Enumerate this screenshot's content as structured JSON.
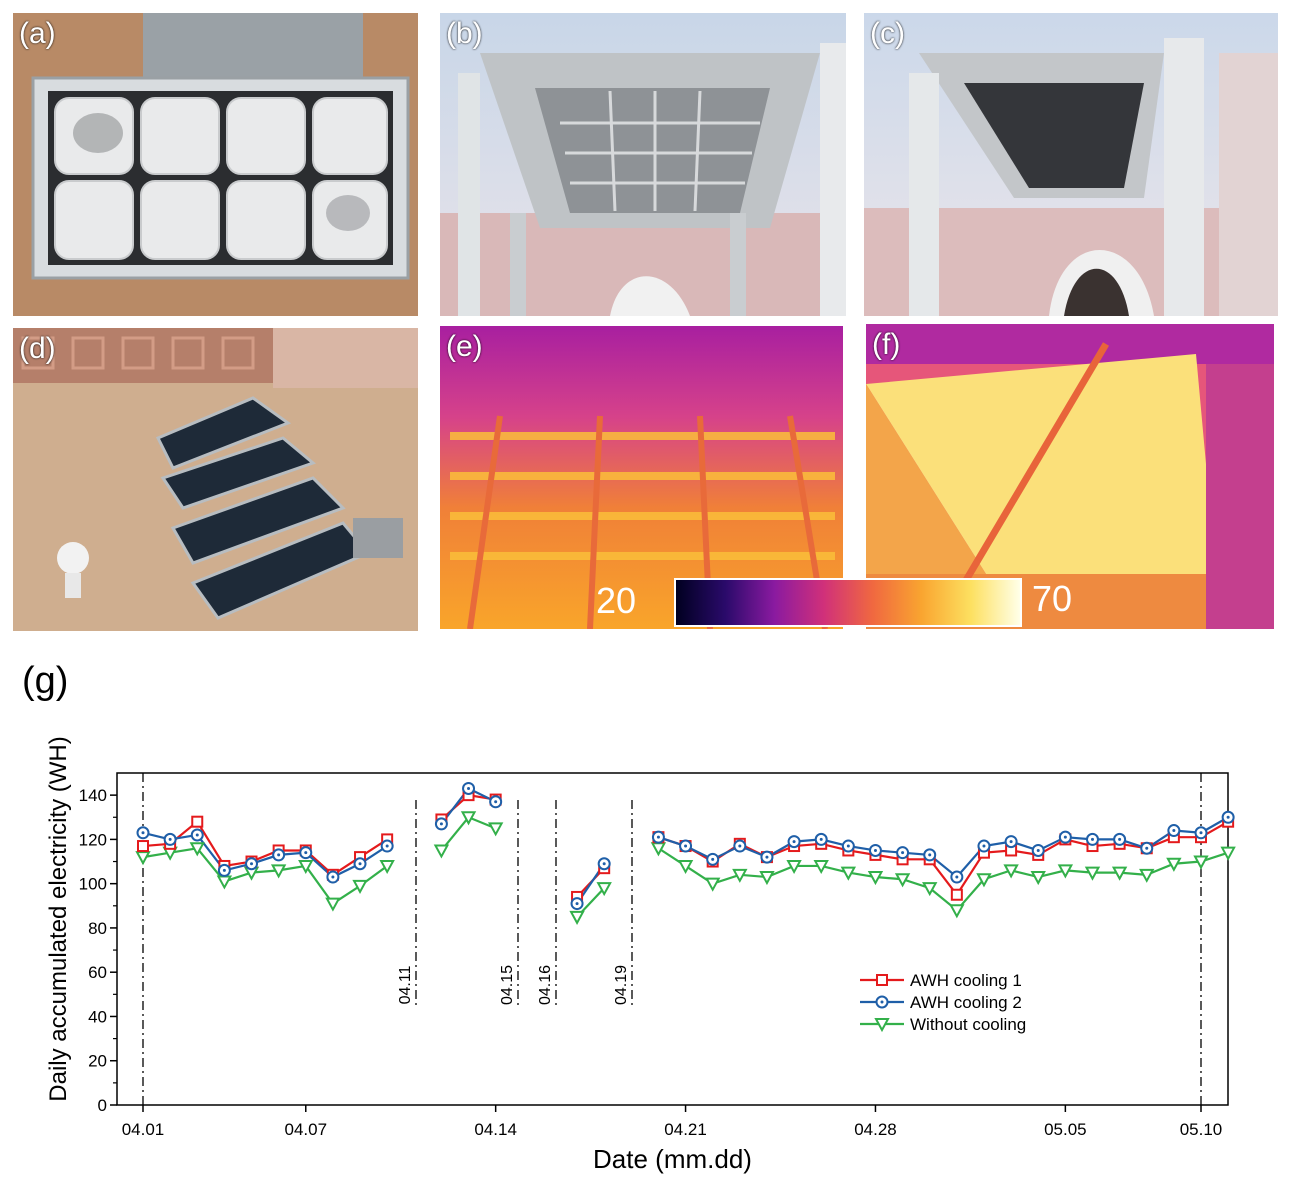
{
  "panels": {
    "a": {
      "label": "(a)"
    },
    "b": {
      "label": "(b)"
    },
    "c": {
      "label": "(c)"
    },
    "d": {
      "label": "(d)"
    },
    "e": {
      "label": "(e)"
    },
    "f": {
      "label": "(f)"
    },
    "g": {
      "label": "(g)"
    }
  },
  "colorbar": {
    "min_label": "20",
    "max_label": "70"
  },
  "colors": {
    "awh1": "#e41a1c",
    "awh2": "#1f5fa8",
    "nocool": "#33b04a"
  },
  "chart_data": {
    "type": "line",
    "xlabel": "Date (mm.dd)",
    "ylabel": "Daily accumulated electricity (WH)",
    "ylim": [
      0,
      150
    ],
    "yticks": [
      0,
      20,
      40,
      60,
      80,
      100,
      120,
      140
    ],
    "xticks": [
      "04.01",
      "04.07",
      "04.14",
      "04.21",
      "04.28",
      "05.05",
      "05.10"
    ],
    "gap_markers": [
      "04.11",
      "04.15",
      "04.16",
      "04.19"
    ],
    "legend_position": "center-right",
    "series": [
      {
        "name": "AWH cooling 1",
        "marker": "square",
        "segments": [
          [
            [
              "04.01",
              117
            ],
            [
              "04.02",
              118
            ],
            [
              "04.03",
              128
            ],
            [
              "04.04",
              108
            ],
            [
              "04.05",
              110
            ],
            [
              "04.06",
              115
            ],
            [
              "04.07",
              115
            ],
            [
              "04.08",
              104
            ],
            [
              "04.09",
              112
            ],
            [
              "04.10",
              120
            ]
          ],
          [
            [
              "04.12",
              129
            ],
            [
              "04.13",
              140
            ],
            [
              "04.14",
              138
            ]
          ],
          [
            [
              "04.17",
              94
            ],
            [
              "04.18",
              107
            ]
          ],
          [
            [
              "04.20",
              121
            ],
            [
              "04.21",
              117
            ],
            [
              "04.22",
              110
            ],
            [
              "04.23",
              118
            ],
            [
              "04.24",
              112
            ],
            [
              "04.25",
              117
            ],
            [
              "04.26",
              118
            ],
            [
              "04.27",
              115
            ],
            [
              "04.28",
              113
            ],
            [
              "04.29",
              111
            ],
            [
              "04.30",
              111
            ],
            [
              "05.01",
              95
            ],
            [
              "05.02",
              114
            ],
            [
              "05.03",
              115
            ],
            [
              "05.04",
              113
            ],
            [
              "05.05",
              120
            ],
            [
              "05.06",
              117
            ],
            [
              "05.07",
              118
            ],
            [
              "05.08",
              116
            ],
            [
              "05.09",
              121
            ],
            [
              "05.10",
              121
            ],
            [
              "05.11",
              128
            ]
          ]
        ]
      },
      {
        "name": "AWH cooling 2",
        "marker": "circle",
        "segments": [
          [
            [
              "04.01",
              123
            ],
            [
              "04.02",
              120
            ],
            [
              "04.03",
              122
            ],
            [
              "04.04",
              106
            ],
            [
              "04.05",
              109
            ],
            [
              "04.06",
              113
            ],
            [
              "04.07",
              114
            ],
            [
              "04.08",
              103
            ],
            [
              "04.09",
              109
            ],
            [
              "04.10",
              117
            ]
          ],
          [
            [
              "04.12",
              127
            ],
            [
              "04.13",
              143
            ],
            [
              "04.14",
              137
            ]
          ],
          [
            [
              "04.17",
              91
            ],
            [
              "04.18",
              109
            ]
          ],
          [
            [
              "04.20",
              121
            ],
            [
              "04.21",
              117
            ],
            [
              "04.22",
              111
            ],
            [
              "04.23",
              117
            ],
            [
              "04.24",
              112
            ],
            [
              "04.25",
              119
            ],
            [
              "04.26",
              120
            ],
            [
              "04.27",
              117
            ],
            [
              "04.28",
              115
            ],
            [
              "04.29",
              114
            ],
            [
              "04.30",
              113
            ],
            [
              "05.01",
              103
            ],
            [
              "05.02",
              117
            ],
            [
              "05.03",
              119
            ],
            [
              "05.04",
              115
            ],
            [
              "05.05",
              121
            ],
            [
              "05.06",
              120
            ],
            [
              "05.07",
              120
            ],
            [
              "05.08",
              116
            ],
            [
              "05.09",
              124
            ],
            [
              "05.10",
              123
            ],
            [
              "05.11",
              130
            ]
          ]
        ]
      },
      {
        "name": "Without cooling",
        "marker": "triangle-down",
        "segments": [
          [
            [
              "04.01",
              112
            ],
            [
              "04.02",
              114
            ],
            [
              "04.03",
              116
            ],
            [
              "04.04",
              101
            ],
            [
              "04.05",
              105
            ],
            [
              "04.06",
              106
            ],
            [
              "04.07",
              108
            ],
            [
              "04.08",
              91
            ],
            [
              "04.09",
              99
            ],
            [
              "04.10",
              108
            ]
          ],
          [
            [
              "04.12",
              115
            ],
            [
              "04.13",
              130
            ],
            [
              "04.14",
              125
            ]
          ],
          [
            [
              "04.17",
              85
            ],
            [
              "04.18",
              98
            ]
          ],
          [
            [
              "04.20",
              116
            ],
            [
              "04.21",
              108
            ],
            [
              "04.22",
              100
            ],
            [
              "04.23",
              104
            ],
            [
              "04.24",
              103
            ],
            [
              "04.25",
              108
            ],
            [
              "04.26",
              108
            ],
            [
              "04.27",
              105
            ],
            [
              "04.28",
              103
            ],
            [
              "04.29",
              102
            ],
            [
              "04.30",
              98
            ],
            [
              "05.01",
              88
            ],
            [
              "05.02",
              102
            ],
            [
              "05.03",
              106
            ],
            [
              "05.04",
              103
            ],
            [
              "05.05",
              106
            ],
            [
              "05.06",
              105
            ],
            [
              "05.07",
              105
            ],
            [
              "05.08",
              104
            ],
            [
              "05.09",
              109
            ],
            [
              "05.10",
              110
            ],
            [
              "05.11",
              114
            ]
          ]
        ]
      }
    ]
  }
}
